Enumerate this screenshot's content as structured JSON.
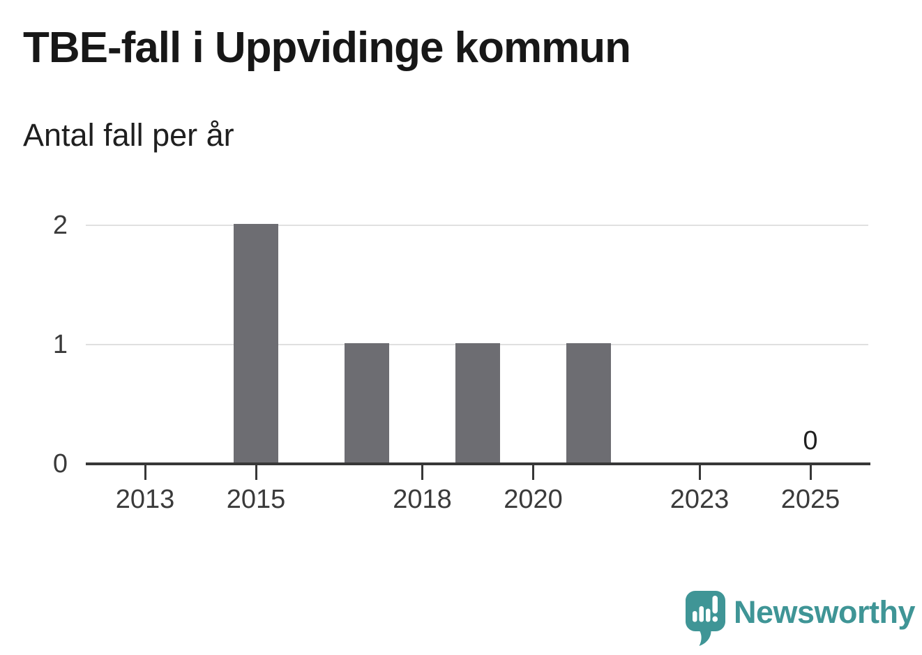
{
  "header": {
    "title": "TBE-fall i Uppvidinge kommun",
    "subtitle": "Antal fall per år"
  },
  "chart_data": {
    "type": "bar",
    "title": "TBE-fall i Uppvidinge kommun",
    "subtitle": "Antal fall per år",
    "xlabel": "",
    "ylabel": "Antal fall per år",
    "categories": [
      2013,
      2014,
      2015,
      2016,
      2017,
      2018,
      2019,
      2020,
      2021,
      2022,
      2023,
      2024,
      2025
    ],
    "values": [
      0,
      0,
      2,
      0,
      1,
      0,
      1,
      0,
      1,
      0,
      0,
      0,
      0
    ],
    "ylim": [
      0,
      2
    ],
    "yticks": [
      0,
      1,
      2
    ],
    "xticks": [
      2013,
      2015,
      2018,
      2020,
      2023,
      2025
    ],
    "grid": "horizontal-only",
    "legend": "none",
    "bar_color": "#6d6d72",
    "gridline_color": "#e0e0e0",
    "axis_color": "#373737",
    "annotations": [
      {
        "x": 2025,
        "y": 0,
        "text": "0"
      }
    ]
  },
  "branding": {
    "name": "Newsworthy",
    "icon": "newsworthy-speech-bubble-barchart-icon",
    "color": "#3f9596"
  }
}
